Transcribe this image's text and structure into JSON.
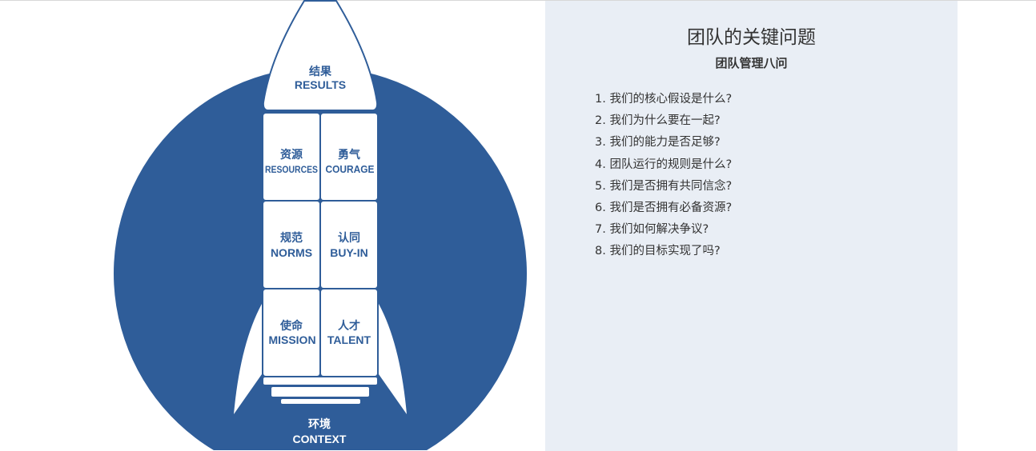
{
  "colors": {
    "rocket_blue": "#2f5d99",
    "panel_bg": "#e9eef5"
  },
  "diagram": {
    "results": {
      "zh": "结果",
      "en": "RESULTS"
    },
    "blocks": [
      {
        "zh": "资源",
        "en": "RESOURCES"
      },
      {
        "zh": "勇气",
        "en": "COURAGE"
      },
      {
        "zh": "规范",
        "en": "NORMS"
      },
      {
        "zh": "认同",
        "en": "BUY-IN"
      },
      {
        "zh": "使命",
        "en": "MISSION"
      },
      {
        "zh": "人才",
        "en": "TALENT"
      }
    ],
    "context": {
      "zh": "环境",
      "en": "CONTEXT"
    }
  },
  "panel": {
    "title": "团队的关键问题",
    "subtitle": "团队管理八问",
    "questions": [
      "1. 我们的核心假设是什么?",
      "2. 我们为什么要在一起?",
      "3. 我们的能力是否足够?",
      "4. 团队运行的规则是什么?",
      "5. 我们是否拥有共同信念?",
      "6. 我们是否拥有必备资源?",
      "7. 我们如何解决争议?",
      "8. 我们的目标实现了吗?"
    ]
  }
}
